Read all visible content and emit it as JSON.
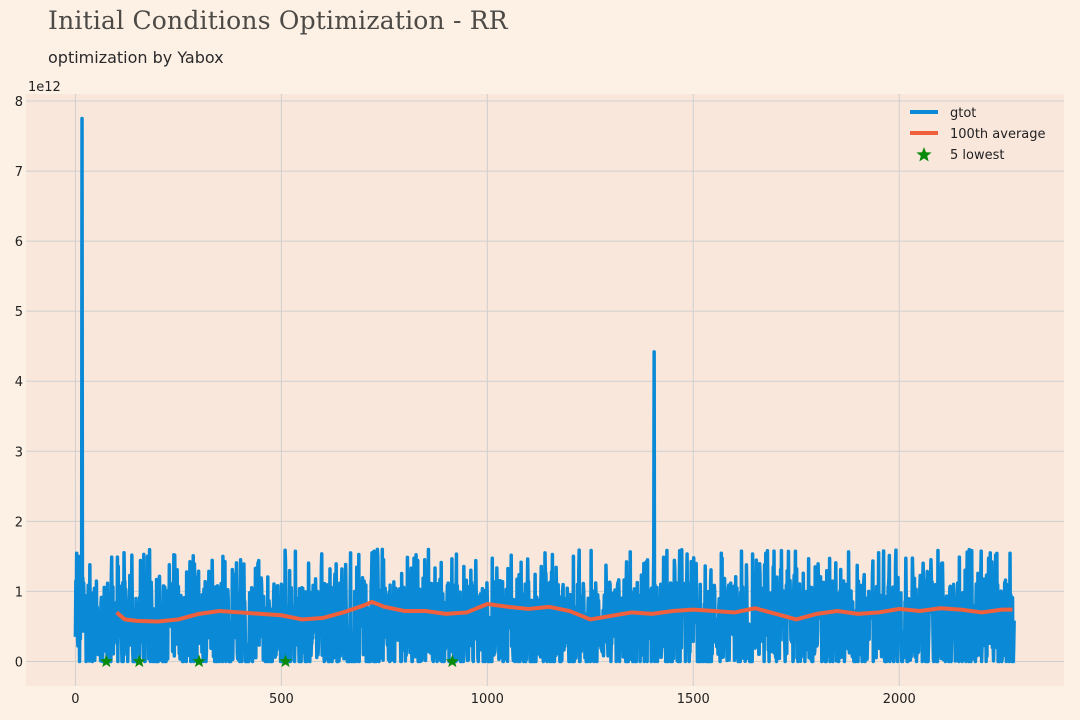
{
  "header": {
    "title": "Initial Conditions Optimization - RR",
    "subtitle": "optimization by Yabox"
  },
  "colors": {
    "background": "#fdf1e6",
    "plot_background": "#f9e7dc",
    "grid": "#cfcfcf",
    "gtot": "#0a8ad6",
    "average": "#f0603d",
    "lowest": "#0a8a0a"
  },
  "chart_data": {
    "type": "line",
    "title": "Initial Conditions Optimization - RR",
    "subtitle": "optimization by Yabox",
    "xlabel": "",
    "ylabel": "",
    "y_offset_label": "1e12",
    "xlim": [
      -120,
      2400
    ],
    "ylim": [
      -0.35,
      8.1
    ],
    "xticks": [
      0,
      500,
      1000,
      1500,
      2000
    ],
    "yticks": [
      0,
      1,
      2,
      3,
      4,
      5,
      6,
      7,
      8
    ],
    "grid": true,
    "legend_position": "top-right",
    "series": [
      {
        "name": "gtot",
        "kind": "line",
        "n_points": 2280,
        "band_min": 0.0,
        "band_max": 1.6,
        "spikes": [
          {
            "x": 16,
            "y": 7.75
          },
          {
            "x": 1405,
            "y": 4.42
          },
          {
            "x": 13,
            "y": 1.4
          },
          {
            "x": 35,
            "y": 1.38
          },
          {
            "x": 720,
            "y": 1.55
          },
          {
            "x": 745,
            "y": 1.6
          },
          {
            "x": 1140,
            "y": 1.55
          }
        ]
      },
      {
        "name": "100th average",
        "kind": "line",
        "x": [
          100,
          120,
          150,
          200,
          250,
          300,
          350,
          400,
          450,
          500,
          550,
          600,
          650,
          700,
          720,
          750,
          800,
          850,
          900,
          950,
          1000,
          1050,
          1100,
          1150,
          1200,
          1250,
          1300,
          1350,
          1400,
          1450,
          1500,
          1550,
          1600,
          1650,
          1700,
          1750,
          1800,
          1850,
          1900,
          1950,
          2000,
          2050,
          2100,
          2150,
          2200,
          2250,
          2275
        ],
        "y": [
          0.7,
          0.6,
          0.58,
          0.57,
          0.6,
          0.68,
          0.72,
          0.7,
          0.68,
          0.66,
          0.6,
          0.62,
          0.7,
          0.8,
          0.85,
          0.78,
          0.72,
          0.72,
          0.68,
          0.7,
          0.82,
          0.78,
          0.75,
          0.78,
          0.72,
          0.6,
          0.65,
          0.7,
          0.68,
          0.72,
          0.74,
          0.72,
          0.7,
          0.76,
          0.68,
          0.6,
          0.68,
          0.72,
          0.68,
          0.7,
          0.75,
          0.72,
          0.76,
          0.74,
          0.7,
          0.74,
          0.74
        ]
      },
      {
        "name": "5 lowest",
        "kind": "scatter",
        "marker": "star",
        "x": [
          75,
          155,
          300,
          510,
          915
        ],
        "y": [
          0.0,
          0.0,
          0.0,
          0.0,
          0.0
        ]
      }
    ]
  }
}
